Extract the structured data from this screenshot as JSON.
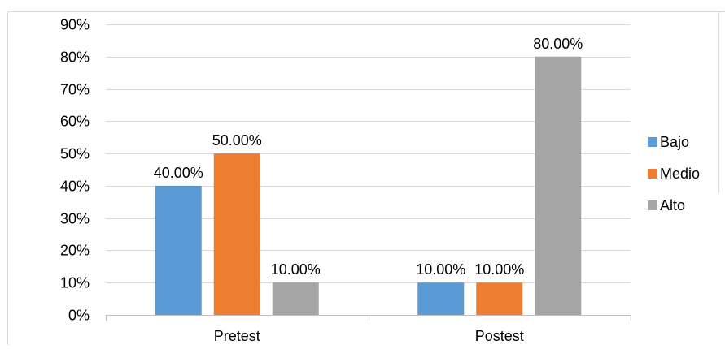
{
  "chart_data": {
    "type": "bar",
    "categories": [
      "Pretest",
      "Postest"
    ],
    "series": [
      {
        "name": "Bajo",
        "color": "#5B9BD5",
        "values": [
          40,
          10
        ],
        "labels": [
          "40.00%",
          "10.00%"
        ]
      },
      {
        "name": "Medio",
        "color": "#ED7D31",
        "values": [
          50,
          10
        ],
        "labels": [
          "50.00%",
          "10.00%"
        ]
      },
      {
        "name": "Alto",
        "color": "#A5A5A5",
        "values": [
          10,
          80
        ],
        "labels": [
          "10.00%",
          "80.00%"
        ]
      }
    ],
    "ylim": [
      0,
      90
    ],
    "y_ticks": [
      0,
      10,
      20,
      30,
      40,
      50,
      60,
      70,
      80,
      90
    ],
    "y_tick_labels": [
      "0%",
      "10%",
      "20%",
      "30%",
      "40%",
      "50%",
      "60%",
      "70%",
      "80%",
      "90%"
    ],
    "grid": true,
    "legend_position": "right",
    "title": "",
    "xlabel": "",
    "ylabel": ""
  }
}
